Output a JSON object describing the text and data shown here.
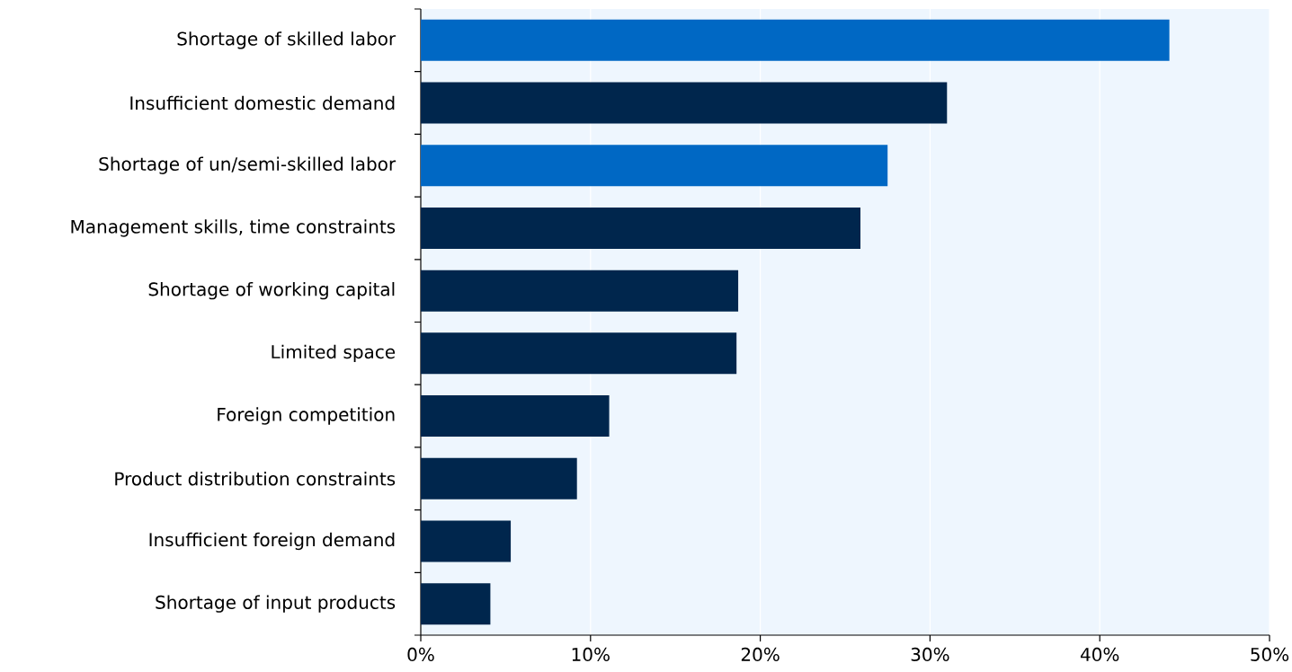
{
  "chart_data": {
    "type": "bar",
    "orientation": "horizontal",
    "categories": [
      "Shortage of skilled labor",
      "Insufficient domestic demand",
      "Shortage of un/semi-skilled labor",
      "Management skills, time constraints",
      "Shortage of working capital",
      "Limited space",
      "Foreign competition",
      "Product distribution constraints",
      "Insufficient foreign demand",
      "Shortage of input products"
    ],
    "values": [
      44.1,
      31.0,
      27.5,
      25.9,
      18.7,
      18.6,
      11.1,
      9.2,
      5.3,
      4.1
    ],
    "colors": [
      "#0068c4",
      "#00264d",
      "#0068c4",
      "#00264d",
      "#00264d",
      "#00264d",
      "#00264d",
      "#00264d",
      "#00264d",
      "#00264d"
    ],
    "xlim": [
      0,
      50
    ],
    "xticks": [
      {
        "value": 0,
        "label": "0%"
      },
      {
        "value": 10,
        "label": "10%"
      },
      {
        "value": 20,
        "label": "20%"
      },
      {
        "value": 30,
        "label": "30%"
      },
      {
        "value": 40,
        "label": "40%"
      },
      {
        "value": 50,
        "label": "50%"
      }
    ],
    "grid": "x"
  }
}
